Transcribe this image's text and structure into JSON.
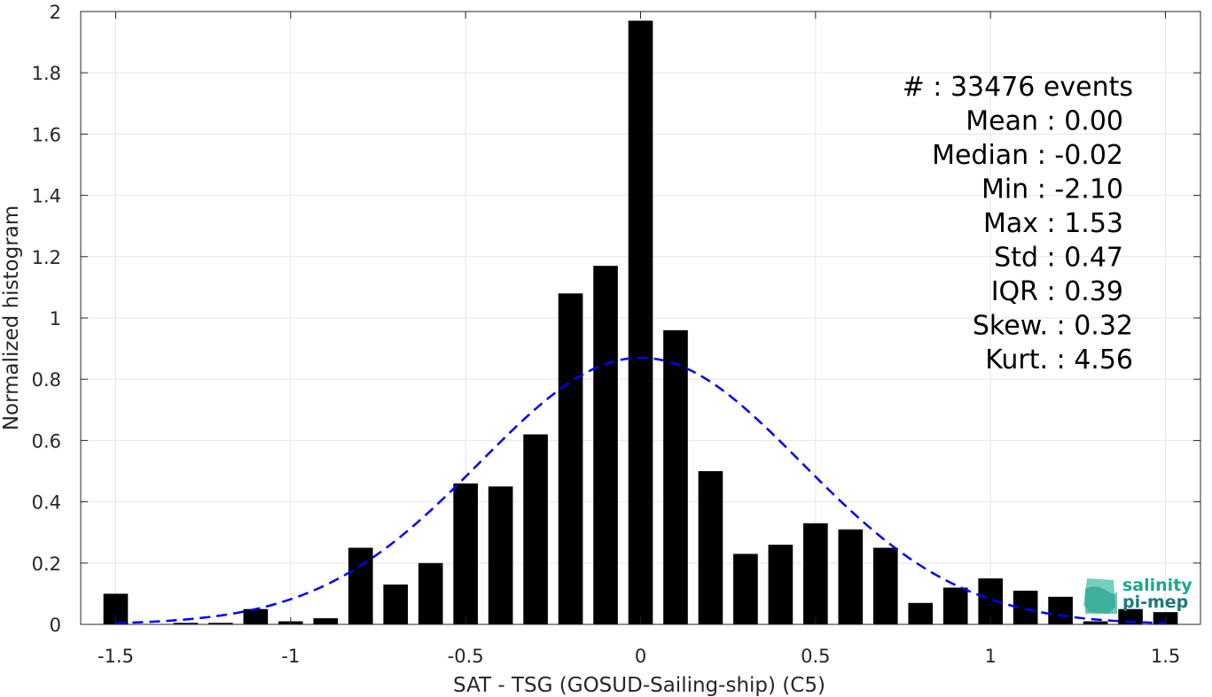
{
  "chart_data": {
    "type": "bar",
    "xlabel": "SAT - TSG (GOSUD-Sailing-ship) (C5)",
    "ylabel": "Normalized histogram",
    "xlim": [
      -1.6,
      1.6
    ],
    "ylim": [
      0,
      2
    ],
    "xticks": [
      -1.5,
      -1,
      -0.5,
      0,
      0.5,
      1,
      1.5
    ],
    "xtick_labels": [
      "-1.5",
      "-1",
      "-0.5",
      "0",
      "0.5",
      "1",
      "1.5"
    ],
    "yticks": [
      0,
      0.2,
      0.4,
      0.6,
      0.8,
      1,
      1.2,
      1.4,
      1.6,
      1.8,
      2
    ],
    "ytick_labels": [
      "0",
      "0.2",
      "0.4",
      "0.6",
      "0.8",
      "1",
      "1.2",
      "1.4",
      "1.6",
      "1.8",
      "2"
    ],
    "grid": true,
    "bar_width": 0.07,
    "bars": [
      {
        "x": -1.5,
        "y": 0.1
      },
      {
        "x": -1.4,
        "y": 0.0
      },
      {
        "x": -1.3,
        "y": 0.005
      },
      {
        "x": -1.2,
        "y": 0.005
      },
      {
        "x": -1.1,
        "y": 0.05
      },
      {
        "x": -1.0,
        "y": 0.01
      },
      {
        "x": -0.9,
        "y": 0.02
      },
      {
        "x": -0.8,
        "y": 0.25
      },
      {
        "x": -0.7,
        "y": 0.13
      },
      {
        "x": -0.6,
        "y": 0.2
      },
      {
        "x": -0.5,
        "y": 0.46
      },
      {
        "x": -0.4,
        "y": 0.45
      },
      {
        "x": -0.3,
        "y": 0.62
      },
      {
        "x": -0.2,
        "y": 1.08
      },
      {
        "x": -0.1,
        "y": 1.17
      },
      {
        "x": 0.0,
        "y": 1.97
      },
      {
        "x": 0.1,
        "y": 0.96
      },
      {
        "x": 0.2,
        "y": 0.5
      },
      {
        "x": 0.3,
        "y": 0.23
      },
      {
        "x": 0.4,
        "y": 0.26
      },
      {
        "x": 0.5,
        "y": 0.33
      },
      {
        "x": 0.6,
        "y": 0.31
      },
      {
        "x": 0.7,
        "y": 0.25
      },
      {
        "x": 0.8,
        "y": 0.07
      },
      {
        "x": 0.9,
        "y": 0.12
      },
      {
        "x": 1.0,
        "y": 0.15
      },
      {
        "x": 1.1,
        "y": 0.11
      },
      {
        "x": 1.2,
        "y": 0.09
      },
      {
        "x": 1.3,
        "y": 0.01
      },
      {
        "x": 1.4,
        "y": 0.05
      },
      {
        "x": 1.5,
        "y": 0.04
      }
    ],
    "bar_color": "#000000",
    "fit_curve": {
      "style": "dashed",
      "color": "#0000ff",
      "mean": 0.0,
      "std": 0.46,
      "peak": 0.87,
      "x_range": [
        -1.5,
        1.5
      ]
    },
    "stats": [
      "#  : 33476 events",
      "Mean : 0.00",
      "Median : -0.02",
      "Min : -2.10",
      "Max : 1.53",
      "Std : 0.47",
      "IQR : 0.39",
      "Skew. : 0.32",
      "Kurt. : 4.56"
    ],
    "stats_position": "top-right"
  },
  "logo": {
    "line1": "salinity",
    "line2": "pi-mep",
    "color1": "#19a88e",
    "color2": "#1b7a7a"
  }
}
